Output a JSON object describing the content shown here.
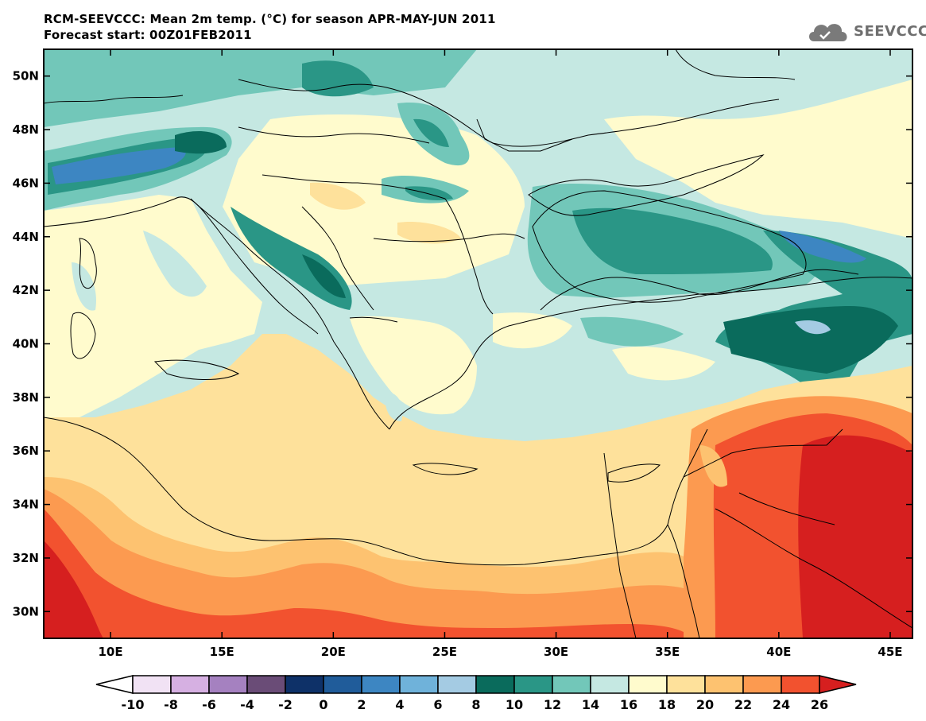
{
  "header": {
    "title_line1": "RCM-SEEVCCC: Mean 2m temp. (°C) for season APR-MAY-JUN 2011",
    "title_line2": "Forecast start: 00Z01FEB2011"
  },
  "logo": {
    "text": "SEEVCCC",
    "icon": "cloud-logo-icon"
  },
  "map": {
    "lat_labels": [
      "50N",
      "48N",
      "46N",
      "44N",
      "42N",
      "40N",
      "38N",
      "36N",
      "34N",
      "32N",
      "30N"
    ],
    "lat_values": [
      50,
      48,
      46,
      44,
      42,
      40,
      38,
      36,
      34,
      32,
      30
    ],
    "lon_labels": [
      "10E",
      "15E",
      "20E",
      "25E",
      "30E",
      "35E",
      "40E",
      "45E"
    ],
    "lon_values": [
      10,
      15,
      20,
      25,
      30,
      35,
      40,
      45
    ],
    "lon_range": [
      7,
      46
    ],
    "lat_range": [
      29,
      51
    ]
  },
  "colorbar": {
    "labels": [
      "-10",
      "-8",
      "-6",
      "-4",
      "-2",
      "0",
      "2",
      "4",
      "6",
      "8",
      "10",
      "12",
      "14",
      "16",
      "18",
      "20",
      "22",
      "24",
      "26"
    ],
    "colors": [
      "#f1e2f4",
      "#d6b0e2",
      "#a581c0",
      "#6a4c77",
      "#0e3168",
      "#205c9a",
      "#3d86c2",
      "#6fb2da",
      "#a4cbe3",
      "#0a6b5c",
      "#2a9686",
      "#72c7b9",
      "#c5e8e2",
      "#fffbcd",
      "#fee19b",
      "#fdc270",
      "#fc9a50",
      "#f2522f"
    ],
    "under_color": "#ffffff",
    "over_color": "#d61f1f"
  }
}
